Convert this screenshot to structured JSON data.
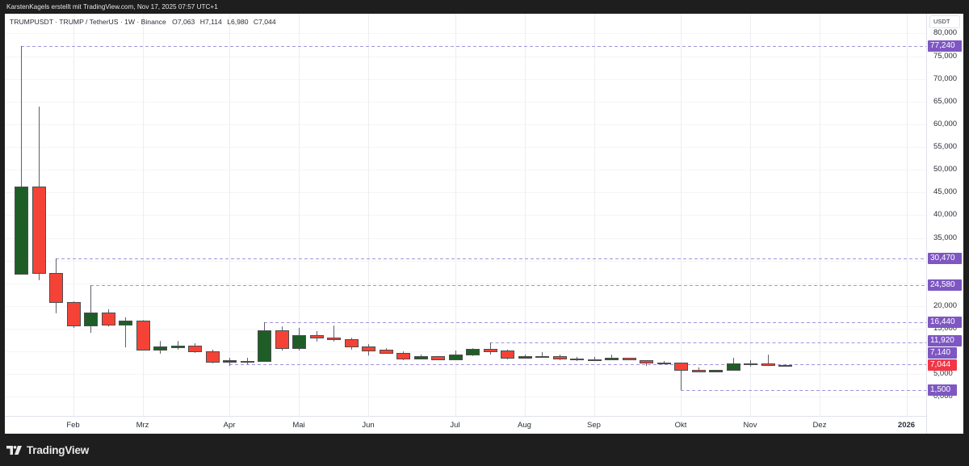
{
  "header": {
    "attribution": "KarstenKagels erstellt mit TradingView.com, Nov 17, 2025 07:57 UTC+1"
  },
  "legend": {
    "symbol_line": "TRUMPUSDT · TRUMP / TetherUS · 1W · Binance",
    "ohlc": [
      {
        "label": "O",
        "value": "7,063"
      },
      {
        "label": "H",
        "value": "7,114"
      },
      {
        "label": "L",
        "value": "6,980"
      },
      {
        "label": "C",
        "value": "7,044"
      }
    ]
  },
  "price_axis": {
    "currency": "USDT"
  },
  "footer": {
    "logo_text": "TradingView",
    "logo_icon": "tradingview-logo-icon"
  },
  "colors": {
    "up": "#1e5e26",
    "down": "#f44336",
    "candle_border": "#4d4d4d",
    "wick": "#5d606b",
    "line_label": "#7e57c2",
    "dashed_line": "#a593dd",
    "current_price": "#f23645",
    "grid": "#eceef2"
  },
  "chart_data": {
    "type": "candlestick",
    "title": "TRUMPUSDT · TRUMP / TetherUS · 1W · Binance",
    "xlabel": "",
    "ylabel": "USDT",
    "ylim": [
      -4.195,
      84.34
    ],
    "grid": true,
    "legend_position": "top-left",
    "x": [
      "2025-01-13",
      "2025-01-20",
      "2025-01-27",
      "2025-02-03",
      "2025-02-10",
      "2025-02-17",
      "2025-02-24",
      "2025-03-03",
      "2025-03-10",
      "2025-03-17",
      "2025-03-24",
      "2025-03-31",
      "2025-04-07",
      "2025-04-14",
      "2025-04-21",
      "2025-04-28",
      "2025-05-05",
      "2025-05-12",
      "2025-05-19",
      "2025-05-26",
      "2025-06-02",
      "2025-06-09",
      "2025-06-16",
      "2025-06-23",
      "2025-06-30",
      "2025-07-07",
      "2025-07-14",
      "2025-07-21",
      "2025-07-28",
      "2025-08-04",
      "2025-08-11",
      "2025-08-18",
      "2025-08-25",
      "2025-09-01",
      "2025-09-08",
      "2025-09-15",
      "2025-09-22",
      "2025-09-29",
      "2025-10-06",
      "2025-10-13",
      "2025-10-20",
      "2025-10-27",
      "2025-11-03",
      "2025-11-10",
      "2025-11-17"
    ],
    "series": [
      {
        "name": "TRUMPUSDT",
        "open": [
          27.1,
          46.3,
          27.3,
          20.9,
          15.7,
          18.6,
          15.9,
          16.8,
          10.4,
          10.9,
          11.3,
          10.0,
          7.7,
          7.85,
          7.9,
          14.65,
          10.7,
          13.6,
          13.0,
          12.7,
          11.1,
          10.4,
          9.7,
          8.4,
          9.0,
          8.25,
          9.3,
          10.6,
          10.2,
          8.6,
          8.95,
          9.0,
          8.45,
          8.25,
          8.25,
          8.6,
          8.1,
          7.55,
          7.5,
          5.9,
          5.6,
          5.9,
          7.35,
          7.4,
          7.063
        ],
        "high": [
          77.24,
          63.9,
          30.47,
          21.0,
          24.58,
          19.3,
          17.5,
          16.9,
          12.3,
          12.3,
          11.8,
          10.4,
          8.6,
          8.6,
          16.44,
          15.5,
          15.2,
          14.5,
          15.7,
          13.0,
          11.6,
          10.7,
          10.0,
          9.3,
          9.0,
          10.2,
          10.7,
          11.92,
          10.4,
          9.3,
          9.85,
          9.3,
          8.8,
          8.8,
          9.3,
          8.6,
          8.1,
          7.9,
          7.5,
          6.5,
          5.9,
          8.6,
          8.1,
          9.3,
          7.114
        ],
        "low": [
          27.1,
          25.7,
          18.4,
          15.2,
          14.1,
          15.5,
          10.9,
          10.4,
          9.5,
          10.4,
          9.7,
          7.4,
          6.8,
          7.2,
          7.9,
          10.2,
          10.2,
          12.2,
          12.2,
          10.4,
          9.1,
          9.5,
          8.1,
          8.4,
          8.25,
          8.25,
          9.0,
          9.3,
          8.25,
          8.6,
          8.6,
          8.1,
          7.9,
          8.1,
          8.25,
          8.25,
          6.8,
          7.2,
          1.5,
          5.4,
          5.4,
          5.9,
          6.65,
          6.8,
          6.98
        ],
        "close": [
          46.3,
          27.3,
          20.9,
          15.7,
          18.6,
          15.9,
          16.8,
          10.4,
          11.1,
          11.3,
          10.0,
          7.7,
          8.1,
          7.9,
          14.65,
          10.7,
          13.6,
          13.0,
          12.7,
          11.1,
          10.2,
          9.7,
          8.4,
          9.0,
          8.25,
          9.3,
          10.6,
          10.0,
          8.6,
          9.0,
          9.0,
          8.4,
          8.4,
          8.3,
          8.6,
          8.25,
          7.5,
          7.5,
          5.9,
          5.6,
          5.9,
          7.4,
          7.4,
          7.06,
          7.044
        ]
      }
    ],
    "x_tick_labels": [
      {
        "label": "Feb",
        "index": 3
      },
      {
        "label": "Mrz",
        "index": 7
      },
      {
        "label": "Apr",
        "index": 12
      },
      {
        "label": "Mai",
        "index": 16
      },
      {
        "label": "Jun",
        "index": 20
      },
      {
        "label": "Jul",
        "index": 25
      },
      {
        "label": "Aug",
        "index": 29
      },
      {
        "label": "Sep",
        "index": 33
      },
      {
        "label": "Okt",
        "index": 38
      },
      {
        "label": "Nov",
        "index": 42
      },
      {
        "label": "Dez",
        "index": 46
      },
      {
        "label": "2026",
        "index": 51,
        "bold": true
      }
    ],
    "y_tick_labels": [
      {
        "value": 0,
        "label": "0,000"
      },
      {
        "value": 5,
        "label": "5,000"
      },
      {
        "value": 10,
        "label": "10,000"
      },
      {
        "value": 15,
        "label": "15,000"
      },
      {
        "value": 20,
        "label": "20,000"
      },
      {
        "value": 25,
        "label": "25,000"
      },
      {
        "value": 30,
        "label": "30,000"
      },
      {
        "value": 35,
        "label": "35,000"
      },
      {
        "value": 40,
        "label": "40,000"
      },
      {
        "value": 45,
        "label": "45,000"
      },
      {
        "value": 50,
        "label": "50,000"
      },
      {
        "value": 55,
        "label": "55,000"
      },
      {
        "value": 60,
        "label": "60,000"
      },
      {
        "value": 65,
        "label": "65,000"
      },
      {
        "value": 70,
        "label": "70,000"
      },
      {
        "value": 75,
        "label": "75,000"
      },
      {
        "value": 80,
        "label": "80,000"
      }
    ],
    "horizontal_lines": [
      {
        "price": 77.24,
        "label": "77,240",
        "start_index": 0
      },
      {
        "price": 30.47,
        "label": "30,470",
        "start_index": 2
      },
      {
        "price": 24.58,
        "label": "24,580",
        "start_index": 4
      },
      {
        "price": 16.44,
        "label": "16,440",
        "start_index": 14
      },
      {
        "price": 11.92,
        "label": "11,920",
        "start_index": 27
      },
      {
        "price": 7.14,
        "label": "7,140",
        "start_index": 12
      },
      {
        "price": 1.5,
        "label": "1,500",
        "start_index": 38
      }
    ],
    "current_price": {
      "value": 7.044,
      "label": "7,044"
    }
  }
}
